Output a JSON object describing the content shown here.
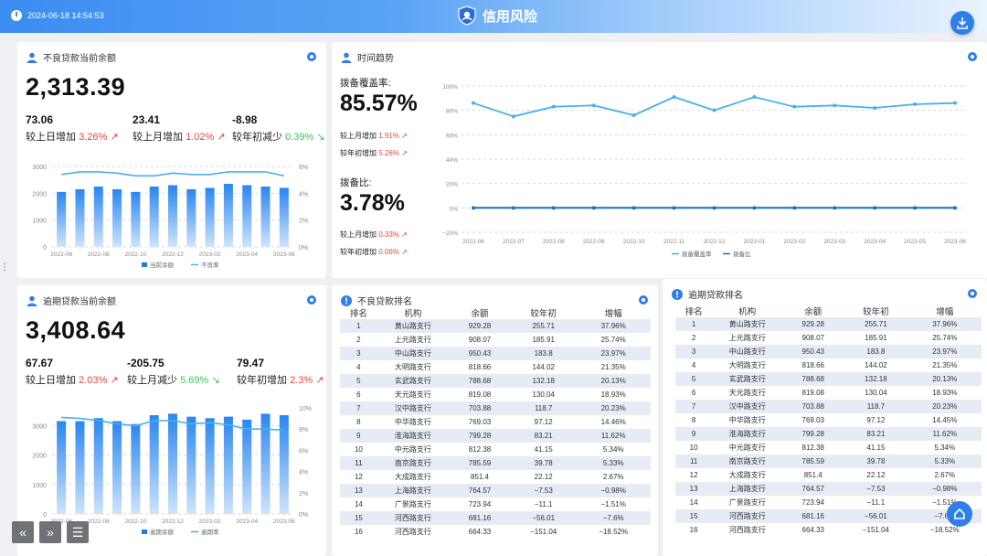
{
  "header": {
    "datetime": "2024-06-18 14:54:53",
    "title": "信用风险"
  },
  "npl_panel": {
    "title": "不良贷款当前余额",
    "big_value": "2,313.39",
    "stats": [
      {
        "value": "73.06",
        "label": "较上日增加",
        "pct": "3.26%",
        "trend": "up"
      },
      {
        "value": "23.41",
        "label": "较上月增加",
        "pct": "1.02%",
        "trend": "up"
      },
      {
        "value": "-8.98",
        "label": "较年初减少",
        "pct": "0.39%",
        "trend": "down"
      }
    ]
  },
  "overdue_panel": {
    "title": "逾期贷款当前余额",
    "big_value": "3,408.64",
    "stats": [
      {
        "value": "67.67",
        "label": "较上日增加",
        "pct": "2.03%",
        "trend": "up"
      },
      {
        "value": "-205.75",
        "label": "较上月减少",
        "pct": "5.69%",
        "trend": "down"
      },
      {
        "value": "79.47",
        "label": "较年初增加",
        "pct": "2.3%",
        "trend": "up"
      }
    ]
  },
  "trend_panel": {
    "title": "时间趋势",
    "coverage": {
      "label": "拨备覆盖率:",
      "value": "85.57%",
      "sub1_label": "较上月增加",
      "sub1_pct": "1.91%",
      "sub2_label": "较年初增加",
      "sub2_pct": "5.26%"
    },
    "ratio": {
      "label": "拨备比:",
      "value": "3.78%",
      "sub1_label": "较上月增加",
      "sub1_pct": "0.33%",
      "sub2_label": "较年初增加",
      "sub2_pct": "0.06%"
    }
  },
  "rank1": {
    "title": "不良贷款排名",
    "headers": [
      "排名",
      "机构",
      "余额",
      "较年初",
      "增幅"
    ],
    "rows": [
      [
        "1",
        "黄山路支行",
        "929.28",
        "255.71",
        "37.96%"
      ],
      [
        "2",
        "上元路支行",
        "908.07",
        "185.91",
        "25.74%"
      ],
      [
        "3",
        "中山路支行",
        "950.43",
        "183.8",
        "23.97%"
      ],
      [
        "4",
        "大明路支行",
        "818.66",
        "144.02",
        "21.35%"
      ],
      [
        "5",
        "玄武路支行",
        "788.68",
        "132.18",
        "20.13%"
      ],
      [
        "6",
        "天元路支行",
        "819.08",
        "130.04",
        "18.93%"
      ],
      [
        "7",
        "汉中路支行",
        "703.88",
        "118.7",
        "20.23%"
      ],
      [
        "8",
        "中华路支行",
        "769.03",
        "97.12",
        "14.46%"
      ],
      [
        "9",
        "淮海路支行",
        "799.28",
        "83.21",
        "11.62%"
      ],
      [
        "10",
        "中元路支行",
        "812.38",
        "41.15",
        "5.34%"
      ],
      [
        "11",
        "南京路支行",
        "785.59",
        "39.78",
        "5.33%"
      ],
      [
        "12",
        "大成路支行",
        "851.4",
        "22.12",
        "2.67%"
      ],
      [
        "13",
        "上海路支行",
        "764.57",
        "−7.53",
        "−0.98%"
      ],
      [
        "14",
        "广景路支行",
        "723.94",
        "−11.1",
        "−1.51%"
      ],
      [
        "15",
        "河西路支行",
        "681.16",
        "−56.01",
        "−7.6%"
      ],
      [
        "16",
        "河西路支行",
        "664.33",
        "−151.04",
        "−18.52%"
      ]
    ]
  },
  "rank2": {
    "title": "逾期贷款排名",
    "headers": [
      "排名",
      "机构",
      "余额",
      "较年初",
      "增幅"
    ],
    "rows": [
      [
        "1",
        "黄山路支行",
        "929.28",
        "255.71",
        "37.96%"
      ],
      [
        "2",
        "上元路支行",
        "908.07",
        "185.91",
        "25.74%"
      ],
      [
        "3",
        "中山路支行",
        "950.43",
        "183.8",
        "23.97%"
      ],
      [
        "4",
        "大明路支行",
        "818.66",
        "144.02",
        "21.35%"
      ],
      [
        "5",
        "玄武路支行",
        "788.68",
        "132.18",
        "20.13%"
      ],
      [
        "6",
        "天元路支行",
        "819.08",
        "130.04",
        "18.93%"
      ],
      [
        "7",
        "汉中路支行",
        "703.88",
        "118.7",
        "20.23%"
      ],
      [
        "8",
        "中华路支行",
        "769.03",
        "97.12",
        "14.45%"
      ],
      [
        "9",
        "淮海路支行",
        "799.28",
        "83.21",
        "11.62%"
      ],
      [
        "10",
        "中元路支行",
        "812.38",
        "41.15",
        "5.34%"
      ],
      [
        "11",
        "南京路支行",
        "785.59",
        "39.78",
        "5.33%"
      ],
      [
        "12",
        "大成路支行",
        "851.4",
        "22.12",
        "2.67%"
      ],
      [
        "13",
        "上海路支行",
        "764.57",
        "−7.53",
        "−0.98%"
      ],
      [
        "14",
        "广景路支行",
        "723.94",
        "−11.1",
        "−1.51%"
      ],
      [
        "15",
        "河西路支行",
        "681.16",
        "−56.01",
        "−7.6%"
      ],
      [
        "16",
        "河西路支行",
        "664.33",
        "−151.04",
        "−18.52%"
      ]
    ]
  },
  "colors": {
    "accent": "#2f7fe8",
    "up": "#e5473a",
    "down": "#3bc45a",
    "bar": "#1e7be6",
    "line": "#4ab0e8"
  },
  "chart_data": [
    {
      "id": "npl_chart",
      "type": "bar",
      "categories": [
        "2022-06",
        "2022-07",
        "2022-08",
        "2022-09",
        "2022-10",
        "2022-11",
        "2022-12",
        "2023-01",
        "2023-02",
        "2023-03",
        "2023-04",
        "2023-05",
        "2023-06"
      ],
      "tick_labels": [
        "2022-06",
        "2022-08",
        "2022-10",
        "2022-12",
        "2023-02",
        "2023-04",
        "2023-06"
      ],
      "series": [
        {
          "name": "当前余额",
          "type": "bar",
          "axis": "left",
          "values": [
            2050,
            2150,
            2250,
            2150,
            2050,
            2250,
            2300,
            2150,
            2200,
            2350,
            2300,
            2250,
            2200
          ]
        },
        {
          "name": "不良率",
          "type": "line",
          "axis": "right",
          "values": [
            5.4,
            5.6,
            5.6,
            5.5,
            5.3,
            5.3,
            5.5,
            5.4,
            5.4,
            5.6,
            5.6,
            5.6,
            5.3
          ]
        }
      ],
      "ylim_left": [
        0,
        3000
      ],
      "yticks_left": [
        0,
        1000,
        2000,
        3000
      ],
      "ylim_right": [
        0,
        6
      ],
      "yticks_right": [
        "0%",
        "2%",
        "4%",
        "6%"
      ],
      "grid": true,
      "legend": "bottom"
    },
    {
      "id": "overdue_chart",
      "type": "bar",
      "categories": [
        "2022-06",
        "2022-07",
        "2022-08",
        "2022-09",
        "2022-10",
        "2022-11",
        "2022-12",
        "2023-01",
        "2023-02",
        "2023-03",
        "2023-04",
        "2023-05",
        "2023-06"
      ],
      "tick_labels": [
        "2022-06",
        "2022-08",
        "2022-10",
        "2022-12",
        "2023-02",
        "2023-04",
        "2023-06"
      ],
      "series": [
        {
          "name": "逾期余额",
          "type": "bar",
          "axis": "left",
          "values": [
            3150,
            3150,
            3250,
            3150,
            3050,
            3350,
            3400,
            3300,
            3250,
            3300,
            3200,
            3400,
            3350
          ]
        },
        {
          "name": "逾期率",
          "type": "line",
          "axis": "right",
          "values": [
            9.1,
            9.0,
            8.8,
            8.5,
            8.3,
            8.8,
            8.8,
            8.5,
            8.6,
            8.4,
            8.0,
            8.0,
            7.9
          ]
        }
      ],
      "ylim_left": [
        0,
        3600
      ],
      "yticks_left": [
        0,
        1000,
        2000,
        3000
      ],
      "ylim_right": [
        0,
        10
      ],
      "yticks_right": [
        "0%",
        "2%",
        "4%",
        "6%",
        "8%",
        "10%"
      ],
      "grid": true,
      "legend": "bottom"
    },
    {
      "id": "trend_chart",
      "type": "line",
      "categories": [
        "2022-06",
        "2022-07",
        "2022-08",
        "2022-09",
        "2022-10",
        "2022-11",
        "2022-12",
        "2023-01",
        "2023-02",
        "2023-03",
        "2023-04",
        "2023-05",
        "2023-06"
      ],
      "series": [
        {
          "name": "拨备覆盖率",
          "values": [
            86,
            75,
            83,
            84,
            76,
            91,
            80,
            91,
            83,
            84,
            82,
            85,
            86
          ]
        },
        {
          "name": "拨备比",
          "values": [
            0,
            0,
            0,
            0,
            0,
            0,
            0,
            0,
            0,
            0,
            0,
            0,
            0
          ]
        }
      ],
      "ylim": [
        -20,
        100
      ],
      "yticks": [
        "−20%",
        "0%",
        "20%",
        "40%",
        "60%",
        "80%",
        "100%"
      ],
      "grid": true,
      "legend": "bottom"
    }
  ]
}
